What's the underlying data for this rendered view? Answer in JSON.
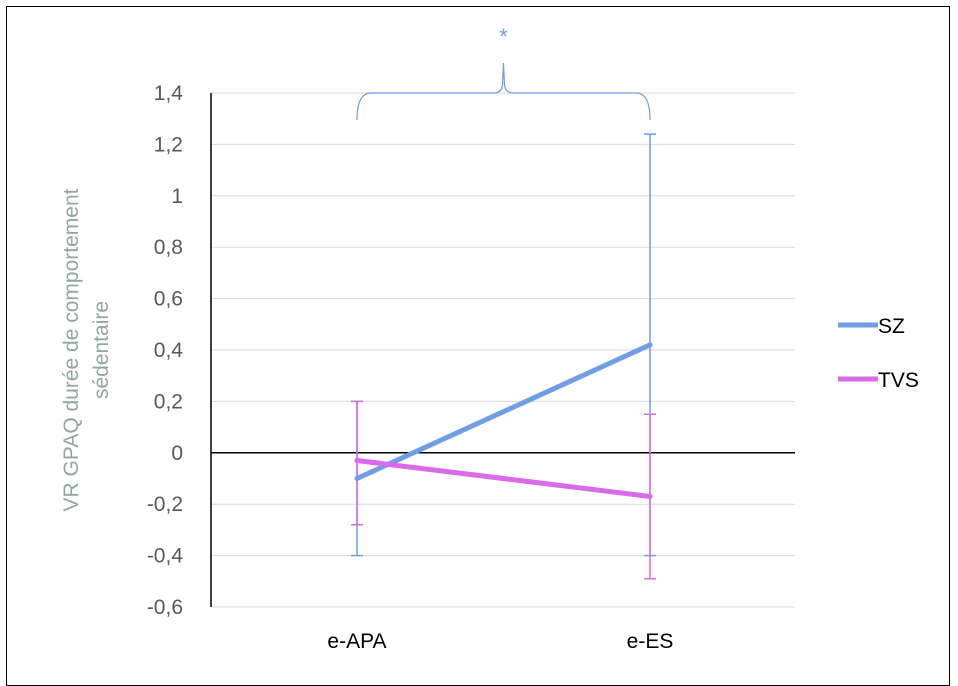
{
  "chart_data": {
    "type": "line",
    "ylabel": "VR GPAQ durée de comportement sédentaire",
    "xlabel": "",
    "categories": [
      "e-APA",
      "e-ES"
    ],
    "ylim": [
      -0.6,
      1.4
    ],
    "yticks": [
      -0.6,
      -0.4,
      -0.2,
      0,
      0.2,
      0.4,
      0.6,
      0.8,
      1,
      1.2,
      1.4
    ],
    "ytick_labels": [
      "-0,6",
      "-0,4",
      "-0,2",
      "0",
      "0,2",
      "0,4",
      "0,6",
      "0,8",
      "1",
      "1,2",
      "1,4"
    ],
    "grid": true,
    "legend_position": "right",
    "series": [
      {
        "name": "SZ",
        "color": "#6f9de6",
        "values": [
          -0.1,
          0.42
        ],
        "error_low": [
          -0.4,
          -0.4
        ],
        "error_high": [
          0.2,
          1.24
        ]
      },
      {
        "name": "TVS",
        "color": "#d96be8",
        "values": [
          -0.03,
          -0.17
        ],
        "error_low": [
          -0.28,
          -0.49
        ],
        "error_high": [
          0.2,
          0.15
        ]
      }
    ],
    "annotation": {
      "text": "*",
      "type": "significance-bracket",
      "between": [
        "e-APA",
        "e-ES"
      ],
      "color": "#6f9de6"
    }
  }
}
